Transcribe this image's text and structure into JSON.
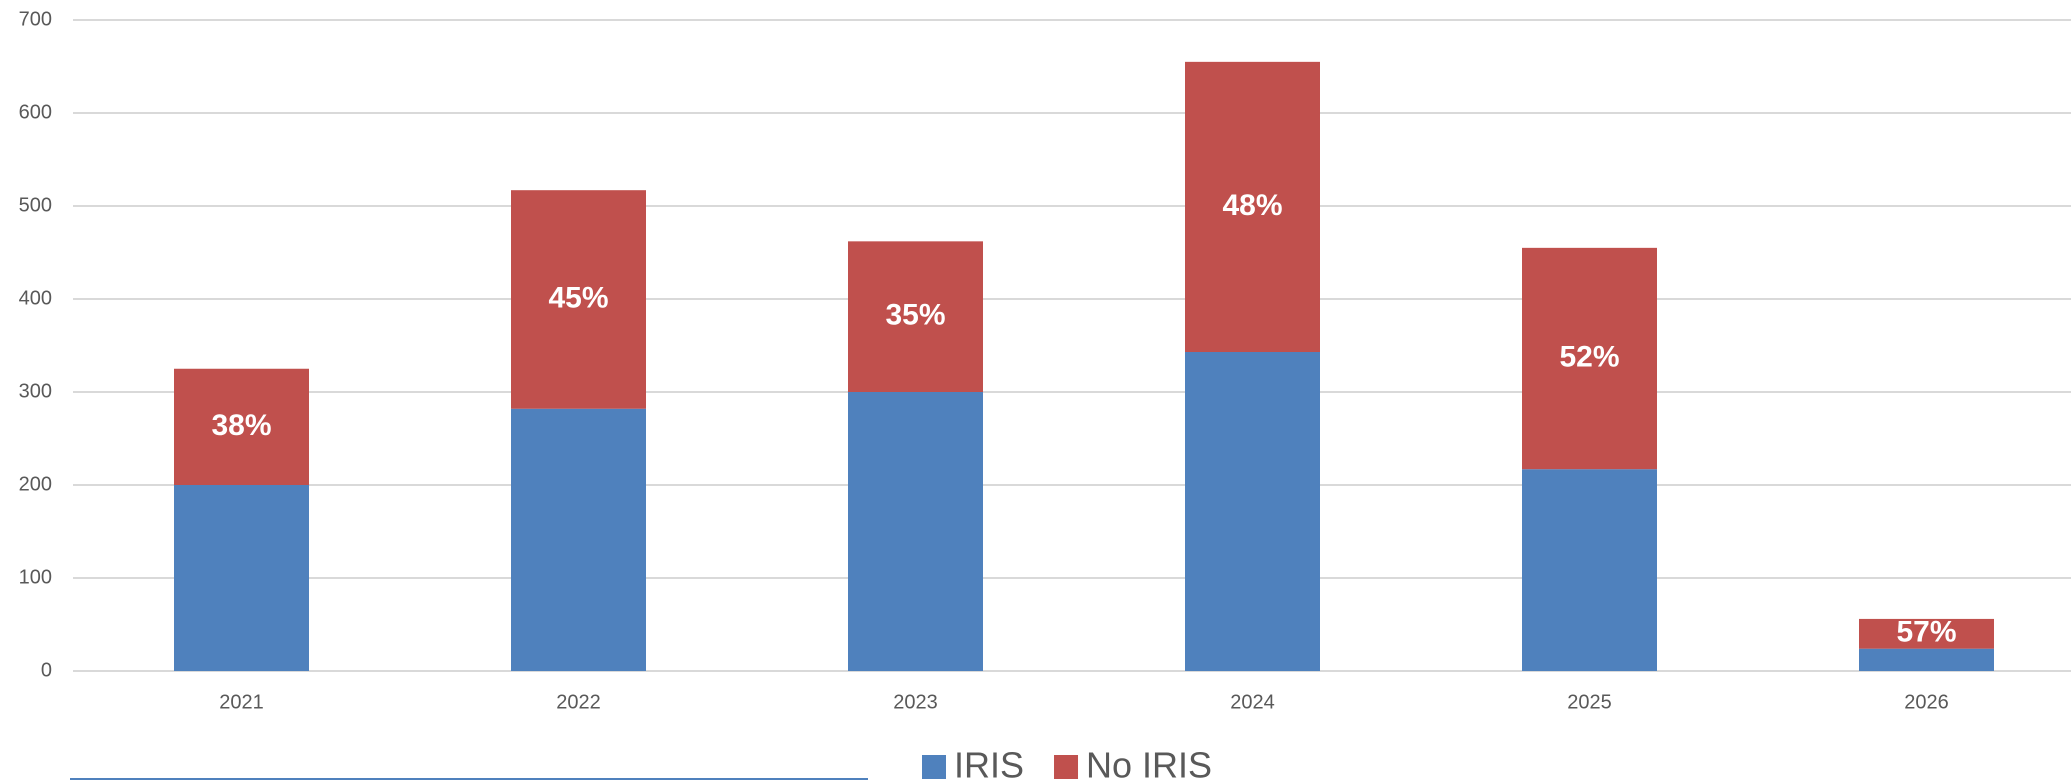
{
  "chart_data": {
    "type": "stacked_bar",
    "categories": [
      "2021",
      "2022",
      "2023",
      "2024",
      "2025",
      "2026"
    ],
    "series": [
      {
        "name": "IRIS",
        "color": "#4f81bd",
        "values": [
          200,
          282,
          300,
          343,
          217,
          24
        ]
      },
      {
        "name": "No IRIS",
        "color": "#c0504d",
        "values": [
          125,
          235,
          162,
          312,
          238,
          32
        ],
        "labels": [
          "38%",
          "45%",
          "35%",
          "48%",
          "52%",
          "57%"
        ]
      }
    ],
    "ylim": [
      0,
      700
    ],
    "yticks": [
      0,
      100,
      200,
      300,
      400,
      500,
      600,
      700
    ],
    "grid": true,
    "legend": "bottom"
  }
}
